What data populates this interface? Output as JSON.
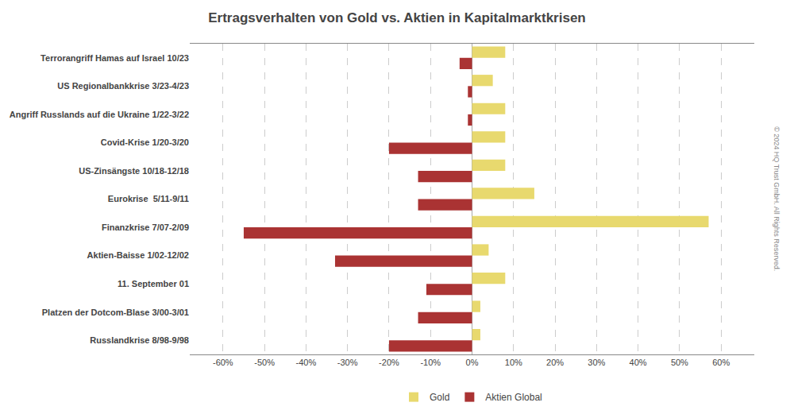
{
  "chart_data": {
    "type": "bar",
    "orientation": "horizontal",
    "title": "Ertragsverhalten von Gold vs. Aktien in Kapitalmarktkrisen",
    "categories": [
      "Terrorangriff Hamas auf Israel 10/23",
      "US Regionalbankkrise 3/23-4/23",
      "Angriff Russlands auf die Ukraine 1/22-3/22",
      "Covid-Krise 1/20-3/20",
      "US-Zinsängste 10/18-12/18",
      "Eurokrise  5/11-9/11",
      "Finanzkrise 7/07-2/09",
      "Aktien-Baisse 1/02-12/02",
      "11. September 01",
      "Platzen der Dotcom-Blase 3/00-3/01",
      "Russlandkrise 8/98-9/98"
    ],
    "series": [
      {
        "name": "Gold",
        "color": "#e8d96e",
        "values": [
          8,
          5,
          8,
          8,
          8,
          15,
          57,
          4,
          8,
          2,
          2
        ]
      },
      {
        "name": "Aktien Global",
        "color": "#aa3333",
        "values": [
          -3,
          -1,
          -1,
          -20,
          -13,
          -13,
          -55,
          -33,
          -11,
          -13,
          -20
        ]
      }
    ],
    "xlim": [
      -68,
      68
    ],
    "xticks": [
      {
        "value": -60,
        "label": "-60%"
      },
      {
        "value": -50,
        "label": "-50%"
      },
      {
        "value": -40,
        "label": "-40%"
      },
      {
        "value": -30,
        "label": "-30%"
      },
      {
        "value": -20,
        "label": "-20%"
      },
      {
        "value": -10,
        "label": "-10%"
      },
      {
        "value": 0,
        "label": "0%"
      },
      {
        "value": 10,
        "label": "10%"
      },
      {
        "value": 20,
        "label": "20%"
      },
      {
        "value": 30,
        "label": "30%"
      },
      {
        "value": 40,
        "label": "40%"
      },
      {
        "value": 50,
        "label": "50%"
      },
      {
        "value": 60,
        "label": "60%"
      }
    ],
    "grid": true,
    "legend": "bottom",
    "annotations": [
      "© 2024 HQ Trust GmbH. All Rights Reserved."
    ]
  }
}
